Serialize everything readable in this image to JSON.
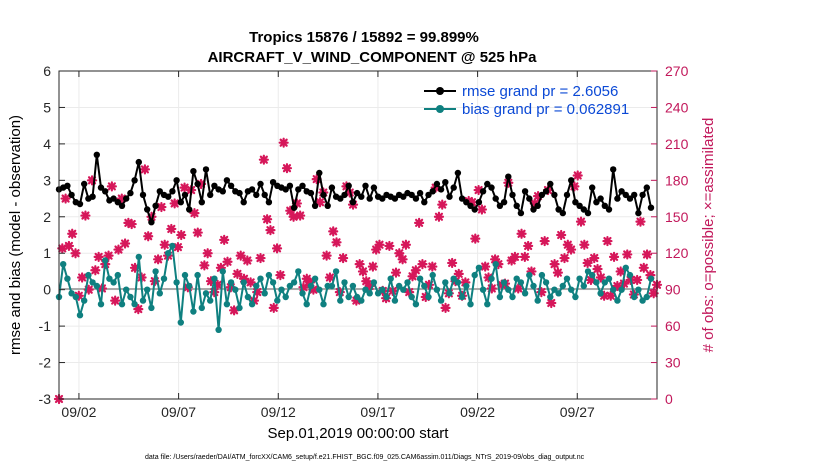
{
  "chart_data": {
    "type": "line",
    "title": "Tropics 15876 / 15892 = 99.899%",
    "subtitle": "AIRCRAFT_V_WIND_COMPONENT @ 525 hPa",
    "xlabel": "Sep.01,2019 00:00:00 start",
    "ylabel_left": "rmse and bias (model - observation)",
    "ylabel_right": "# of obs: o=possible; ×=assimilated",
    "footnote": "data file: /Users/raeder/DAI/ATM_forcXX/CAM6_setup/f.e21.FHIST_BGC.f09_025.CAM6assim.011/Diags_NTrS_2019-09/obs_diag_output.nc",
    "xlim_days": [
      0,
      30
    ],
    "ylim_left": [
      -3,
      6
    ],
    "ylim_right": [
      0,
      270
    ],
    "xticks": [
      {
        "day": 1,
        "label": "09/02"
      },
      {
        "day": 6,
        "label": "09/07"
      },
      {
        "day": 11,
        "label": "09/12"
      },
      {
        "day": 16,
        "label": "09/17"
      },
      {
        "day": 21,
        "label": "09/22"
      },
      {
        "day": 26,
        "label": "09/27"
      }
    ],
    "yticks_left": [
      "-3",
      "-2",
      "-1",
      "0",
      "1",
      "2",
      "3",
      "4",
      "5",
      "6"
    ],
    "yticks_right": [
      "0",
      "30",
      "60",
      "90",
      "120",
      "150",
      "180",
      "210",
      "240",
      "270"
    ],
    "colors": {
      "rmse": "#000000",
      "bias": "#0f8080",
      "obs": "#d6175a",
      "legend_text": "#0b49d6",
      "right_axis": "#c2185b"
    },
    "legend": {
      "position": "top-right",
      "entries": [
        "rmse grand pr = 2.6056",
        "bias grand pr = 0.062891"
      ]
    },
    "series": [
      {
        "name": "rmse",
        "values": [
          2.75,
          2.8,
          2.85,
          2.6,
          2.4,
          2.35,
          2.9,
          2.5,
          2.55,
          3.7,
          2.8,
          2.7,
          2.45,
          2.5,
          2.4,
          2.3,
          2.5,
          2.65,
          3.0,
          3.5,
          2.6,
          2.2,
          1.85,
          2.3,
          2.7,
          2.6,
          2.55,
          2.7,
          3.0,
          2.4,
          2.6,
          2.2,
          3.25,
          2.9,
          2.4,
          3.3,
          2.6,
          2.85,
          2.75,
          2.7,
          3.0,
          2.85,
          2.7,
          2.65,
          2.4,
          2.7,
          2.75,
          2.6,
          2.9,
          2.6,
          2.4,
          2.95,
          2.85,
          2.8,
          2.75,
          2.85,
          2.25,
          2.75,
          2.85,
          2.7,
          2.65,
          2.3,
          3.2,
          2.6,
          2.3,
          2.8,
          2.55,
          2.5,
          2.6,
          2.85,
          2.4,
          2.65,
          2.55,
          2.85,
          2.5,
          2.8,
          2.55,
          2.5,
          2.6,
          2.55,
          2.5,
          2.6,
          2.55,
          2.65,
          2.6,
          2.5,
          2.65,
          2.4,
          2.6,
          2.7,
          2.9,
          2.75,
          2.95,
          2.55,
          2.8,
          3.2,
          2.5,
          2.4,
          2.3,
          2.2,
          2.4,
          2.7,
          2.9,
          2.8,
          2.5,
          2.3,
          2.4,
          3.1,
          2.6,
          2.3,
          2.1,
          2.7,
          2.5,
          2.2,
          2.3,
          2.6,
          2.7,
          2.9,
          2.6,
          2.2,
          2.1,
          2.6,
          3.0,
          2.4,
          2.3,
          2.2,
          2.1,
          2.8,
          2.4,
          2.5,
          2.3,
          2.2,
          3.3,
          2.5,
          2.7,
          2.6,
          2.5,
          2.6,
          2.1,
          2.6,
          2.8,
          2.25
        ]
      },
      {
        "name": "bias",
        "values": [
          -0.2,
          0.7,
          0.3,
          -0.1,
          -0.2,
          -0.7,
          -0.3,
          0.4,
          0.2,
          0.1,
          -0.4,
          0.8,
          0.3,
          0.2,
          0.4,
          -0.4,
          0.0,
          -0.2,
          -0.4,
          0.9,
          -0.3,
          0.0,
          -0.5,
          0.5,
          -0.1,
          0.3,
          1.0,
          1.2,
          0.2,
          -0.9,
          0.4,
          0.1,
          -0.6,
          0.4,
          -0.5,
          -0.1,
          -0.3,
          0.3,
          -1.1,
          0.5,
          -0.4,
          0.2,
          0.0,
          -0.5,
          0.2,
          -0.2,
          -0.4,
          0.1,
          0.3,
          -0.1,
          0.4,
          0.2,
          -0.3,
          0.0,
          -0.2,
          0.1,
          0.2,
          0.5,
          -0.1,
          -0.4,
          0.1,
          0.3,
          0.0,
          -0.4,
          0.1,
          0.1,
          0.5,
          -0.3,
          0.2,
          -0.2,
          0.1,
          -0.2,
          -0.3,
          0.0,
          -0.1,
          0.2,
          -0.1,
          0.0,
          -0.2,
          0.3,
          -0.3,
          0.1,
          0.0,
          0.2,
          -0.2,
          -0.4,
          0.3,
          0.1,
          -0.2,
          0.4,
          0.0,
          -0.3,
          0.2,
          -0.1,
          0.3,
          0.2,
          -0.2,
          0.1,
          -0.4,
          0.4,
          0.6,
          0.0,
          -0.4,
          0.3,
          0.7,
          -0.2,
          0.2,
          0.0,
          -0.2,
          0.3,
          0.2,
          -0.1,
          0.4,
          0.1,
          -0.3,
          0.4,
          0.2,
          -0.2,
          0.0,
          -0.1,
          0.1,
          0.3,
          0.0,
          -0.2,
          0.3,
          0.1,
          0.5,
          0.4,
          0.2,
          -0.1,
          0.2,
          0.3,
          0.0,
          -0.3,
          0.0,
          0.6,
          0.4,
          -0.2,
          0.0,
          -0.3,
          -0.2,
          0.3
        ]
      },
      {
        "name": "obs_count",
        "values": [
          0,
          124,
          165,
          126,
          136,
          120,
          85,
          100,
          151,
          90,
          180,
          106,
          117,
          91,
          111,
          118,
          175,
          81,
          123,
          165,
          128,
          145,
          144,
          108,
          74,
          100,
          189,
          134,
          150,
          97,
          115,
          158,
          127,
          118,
          140,
          161,
          125,
          135,
          174,
          92,
          172,
          153,
          137,
          177,
          110,
          120,
          97,
          88,
          94,
          108,
          131,
          113,
          92,
          73,
          103,
          118,
          99,
          114,
          96,
          81,
          88,
          116,
          197,
          148,
          139,
          75,
          124,
          102,
          211,
          190,
          155,
          150,
          161,
          151,
          92,
          99,
          96,
          90,
          181,
          162,
          170,
          118,
          100,
          138,
          129,
          88,
          116,
          175,
          170,
          160,
          81,
          111,
          105,
          97,
          93,
          109,
          123,
          127,
          89,
          83,
          126,
          89,
          104,
          120,
          115,
          127,
          88,
          101,
          106,
          145,
          111,
          84,
          94,
          109,
          174,
          150,
          160,
          75,
          87,
          112,
          97,
          103,
          85,
          96,
          163,
          162,
          132,
          172,
          156,
          109,
          100,
          91,
          115,
          111,
          94,
          95,
          178,
          114,
          117,
          91,
          136,
          117,
          126,
          105,
          161,
          167,
          88,
          130,
          172,
          79,
          111,
          104,
          135,
          116,
          127,
          123,
          175,
          184,
          146,
          127,
          112,
          98,
          116,
          107,
          100,
          85,
          130,
          85,
          117,
          93,
          105,
          95,
          119,
          98,
          86,
          98,
          146,
          108,
          119,
          102,
          87,
          94
        ]
      }
    ]
  }
}
